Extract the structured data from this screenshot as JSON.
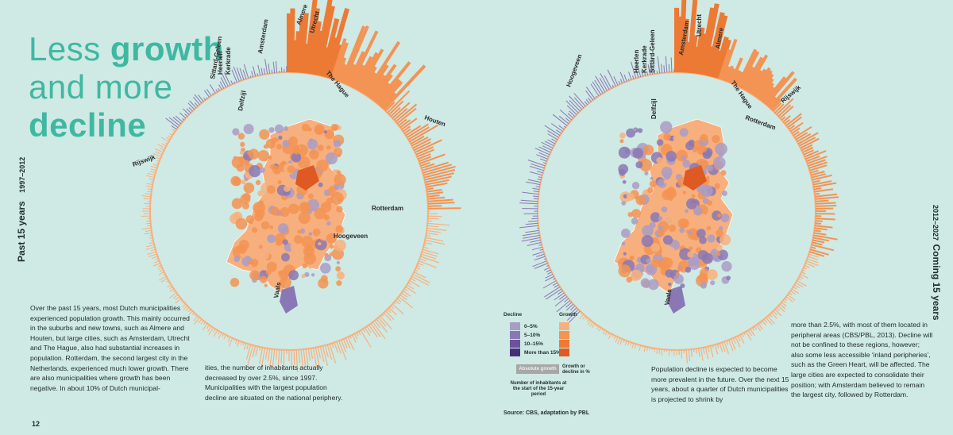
{
  "title": {
    "line1_light": "Less",
    "line1_bold": "growth",
    "line2": "and more",
    "line3": "decline"
  },
  "left_page": {
    "vertical_label": "Past 15 years",
    "vertical_sub": "1997–2012",
    "cities": [
      "Almere",
      "Utrecht",
      "Amsterdam",
      "The Hague",
      "Houten",
      "Rotterdam",
      "Hoogeveen",
      "Delfzijl",
      "Heerlen",
      "Kerkrade",
      "Sittard-Geleen",
      "Rijswijk",
      "Vaals"
    ],
    "text_col1": "Over the past 15 years, most Dutch municipalities experienced population growth. This mainly occurred in the suburbs and new towns, such as Almere and Houten, but large cities, such as Amsterdam, Utrecht and The Hague, also had substantial increases in population. Rotterdam, the second largest city in the Netherlands, experienced much lower growth. There are also municipalities where growth has been negative. In about 10% of Dutch municipal-",
    "text_col2": "ities, the number of inhabitants actually decreased by over 2.5%, since 1997. Municipalities with the largest population decline are situated on the national periphery.",
    "page_number": "12"
  },
  "right_page": {
    "vertical_label": "Coming 15 years",
    "vertical_sub": "2012–2027",
    "cities": [
      "Amsterdam",
      "Utrecht",
      "Almere",
      "The Hague",
      "Rotterdam",
      "Rijswijk",
      "Hoogeveen",
      "Heerlen",
      "Kerkrade",
      "Sittard-Geleen",
      "Delfzijl",
      "Vaals"
    ],
    "text_col1": "Population decline is expected to become more prevalent in the future. Over the next 15 years, about a quarter of Dutch municipalities is projected to shrink by",
    "text_col2": "more than 2.5%, with most of them located in peripheral areas (CBS/PBL, 2013). Decline will not be confined to these regions, however; also some less accessible ‘inland peripheries’, such as the Green Heart, will be affected. The large cities are expected to consolidate their position; with Amsterdam believed to remain the largest city, followed by Rotterdam."
  },
  "legend": {
    "decline_label": "Decline",
    "growth_label": "Growth",
    "ranges": [
      "0–5%",
      "5–10%",
      "10–15%",
      "More than 15%"
    ],
    "decline_colors": [
      "#a99cc6",
      "#8a78b4",
      "#6a539b",
      "#47307a"
    ],
    "growth_colors": [
      "#f7b07d",
      "#f39354",
      "#ec7a35",
      "#de5a22"
    ],
    "absolute_growth": "Absolute growth",
    "growth_or_decline": "Growth or decline in %",
    "inhabitants_note": "Number of inhabitants at the start of the 15-year period",
    "source": "Source: CBS, adaptation by PBL"
  },
  "colors": {
    "background": "#cfe9e4",
    "title": "#3fb8a2",
    "growth_light": "#f7b07d",
    "growth_mid": "#f39354",
    "growth_dark": "#ec7a35",
    "growth_darkest": "#de5a22",
    "decline_light": "#a99cc6",
    "decline_mid": "#8a78b4",
    "decline_dark": "#6a539b",
    "decline_darkest": "#47307a"
  }
}
